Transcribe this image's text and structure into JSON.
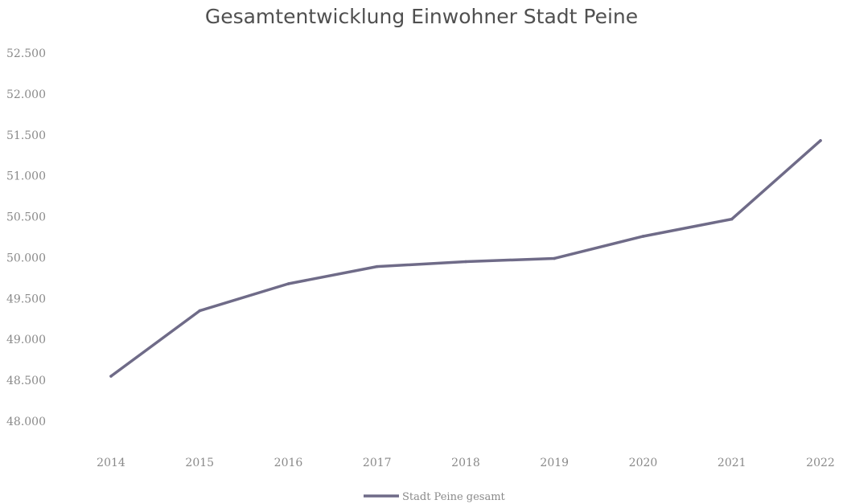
{
  "chart_data": {
    "type": "line",
    "title": "Gesamtentwicklung Einwohner Stadt Peine",
    "xlabel": "",
    "ylabel": "",
    "categories": [
      "2014",
      "2015",
      "2016",
      "2017",
      "2018",
      "2019",
      "2020",
      "2021",
      "2022"
    ],
    "series": [
      {
        "name": "Stadt Peine gesamt",
        "values": [
          48550,
          49350,
          49680,
          49890,
          49950,
          49990,
          50260,
          50470,
          51430
        ],
        "color": "#6f6b88"
      }
    ],
    "ylim": [
      48000,
      52500
    ],
    "yticks": [
      48000,
      48500,
      49000,
      49500,
      50000,
      50500,
      51000,
      51500,
      52000,
      52500
    ],
    "ytick_labels": [
      "48.000",
      "48.500",
      "49.000",
      "49.500",
      "50.000",
      "50.500",
      "51.000",
      "51.500",
      "52.000",
      "52.500"
    ],
    "grid": false,
    "legend_position": "bottom"
  }
}
